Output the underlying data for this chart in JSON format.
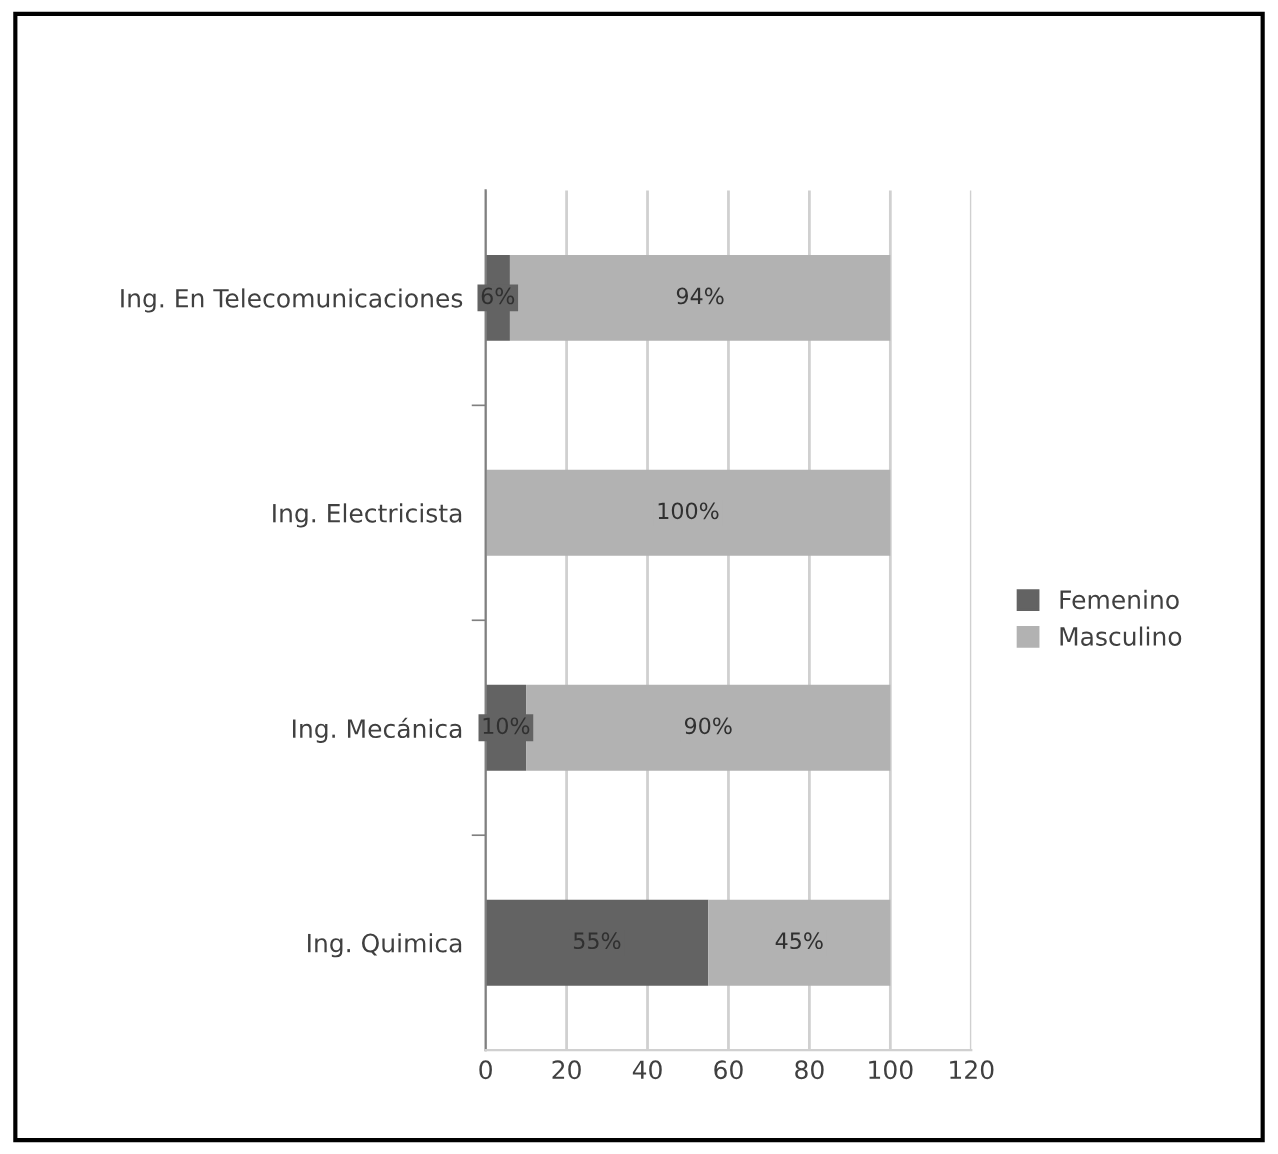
{
  "chart_data": {
    "type": "bar",
    "orientation": "horizontal",
    "stacked": true,
    "categories": [
      "Ing. En Telecomunicaciones",
      "Ing. Electricista",
      "Ing. Mecánica",
      "Ing. Quimica"
    ],
    "series": [
      {
        "name": "Femenino",
        "color": "#636363",
        "values": [
          6,
          0,
          10,
          55
        ],
        "value_labels": [
          "6%",
          null,
          "10%",
          "55%"
        ]
      },
      {
        "name": "Masculino",
        "color": "#b2b2b2",
        "values": [
          94,
          100,
          90,
          45
        ],
        "value_labels": [
          "94%",
          "100%",
          "90%",
          "45%"
        ]
      }
    ],
    "xlim": [
      0,
      120
    ],
    "xticks": [
      0,
      20,
      40,
      60,
      80,
      100,
      120
    ],
    "grid": "x",
    "legend": "right"
  }
}
